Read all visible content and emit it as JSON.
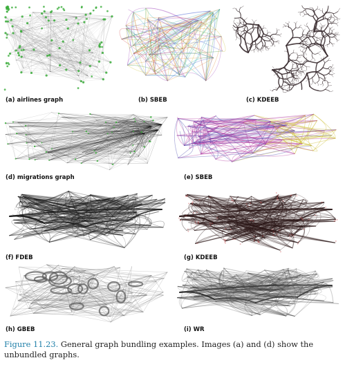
{
  "panels": [
    {
      "id": "a",
      "label": "(a) airlines graph",
      "style": "gray-green"
    },
    {
      "id": "b",
      "label": "(b) SBEB",
      "style": "rainbow"
    },
    {
      "id": "c",
      "label": "(c) KDEEB",
      "style": "dark-tree"
    },
    {
      "id": "d",
      "label": "(d) migrations graph",
      "style": "dense-black"
    },
    {
      "id": "e",
      "label": "(e) SBEB",
      "style": "magenta-yellow"
    },
    {
      "id": "f",
      "label": "(f) FDEB",
      "style": "dark-bundles"
    },
    {
      "id": "g",
      "label": "(g) KDEEB",
      "style": "dark-red"
    },
    {
      "id": "h",
      "label": "(h) GBEB",
      "style": "gray-mesh"
    },
    {
      "id": "i",
      "label": "(i) WR",
      "style": "light-bundles"
    }
  ],
  "caption": {
    "number": "Figure 11.23.",
    "text": " General graph bundling examples. Images (a) and (d) show the unbundled graphs."
  },
  "colors": {
    "caption_number": "#1f7fa8",
    "edge_dark": "#2a2a2a",
    "edge_gray": "#7a7a7a",
    "node_green": "#3cae3c",
    "node_red": "#c23a3a",
    "magenta": "#b0309a",
    "yellow": "#c8b820"
  }
}
